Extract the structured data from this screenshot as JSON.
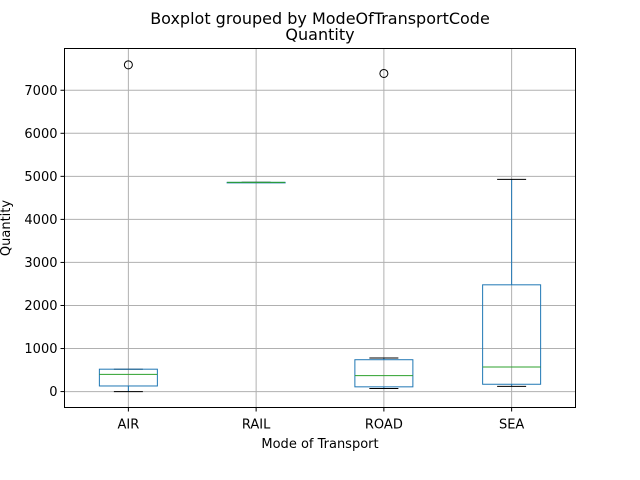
{
  "chart_data": {
    "type": "box",
    "suptitle": "Boxplot grouped by ModeOfTransportCode",
    "title": "Quantity",
    "xlabel": "Mode of Transport",
    "ylabel": "Quantity",
    "ylim": [
      -370,
      7970
    ],
    "yticks": [
      0,
      1000,
      2000,
      3000,
      4000,
      5000,
      6000,
      7000
    ],
    "ytick_labels": [
      "0",
      "1000",
      "2000",
      "3000",
      "4000",
      "5000",
      "6000",
      "7000"
    ],
    "grid": true,
    "categories": [
      "AIR",
      "RAIL",
      "ROAD",
      "SEA"
    ],
    "boxes": [
      {
        "category": "AIR",
        "whisker_low": 0,
        "q1": 130,
        "median": 400,
        "q3": 520,
        "whisker_high": 520,
        "fliers": [
          7590
        ]
      },
      {
        "category": "RAIL",
        "whisker_low": 4860,
        "q1": 4860,
        "median": 4860,
        "q3": 4860,
        "whisker_high": 4860,
        "fliers": []
      },
      {
        "category": "ROAD",
        "whisker_low": 70,
        "q1": 110,
        "median": 370,
        "q3": 740,
        "whisker_high": 780,
        "fliers": [
          7390
        ]
      },
      {
        "category": "SEA",
        "whisker_low": 120,
        "q1": 170,
        "median": 570,
        "q3": 2480,
        "whisker_high": 4930,
        "fliers": []
      }
    ],
    "colors": {
      "box": "#1f77b4",
      "median": "#2ca02c",
      "whisker": "#1f77b4",
      "cap": "#000000",
      "grid": "#b0b0b0",
      "flier": "#000000"
    }
  }
}
